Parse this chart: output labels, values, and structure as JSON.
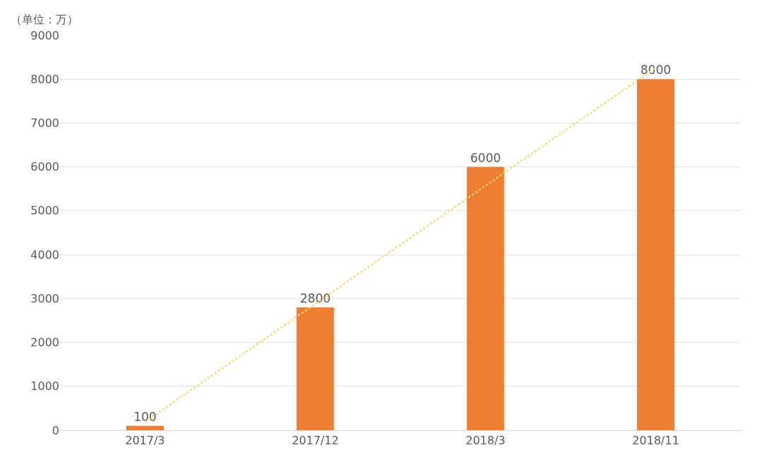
{
  "chart_data": {
    "type": "bar",
    "ylabel": "（单位：万）",
    "categories": [
      "2017/3",
      "2017/12",
      "2018/3",
      "2018/11"
    ],
    "series": [
      {
        "color": "#ed7d31",
        "values": [
          100,
          2800,
          6000,
          8000
        ],
        "value_labels": [
          "100",
          "2800",
          "6000",
          "8000"
        ]
      },
      {
        "type": "line",
        "x": [
          "2017/3",
          "2018/11"
        ],
        "color": "#ffd966",
        "values": [
          190,
          8260
        ],
        "line_style": "dotted"
      }
    ],
    "ylim": [
      0,
      9000
    ],
    "yticks": [
      0,
      1000,
      2000,
      3000,
      4000,
      5000,
      6000,
      7000,
      8000,
      9000
    ],
    "grid": "y",
    "legend": false
  }
}
